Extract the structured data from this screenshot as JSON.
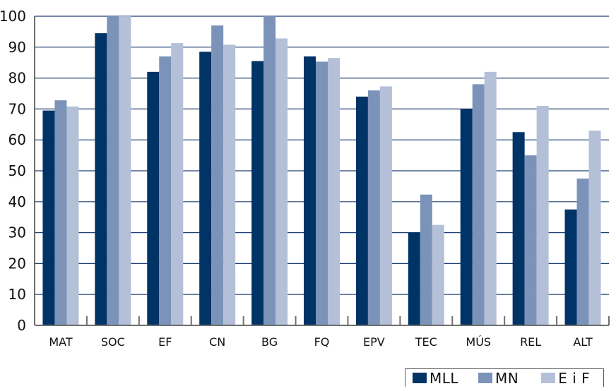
{
  "chart_data": {
    "type": "bar",
    "title": "",
    "xlabel": "",
    "ylabel": "",
    "ylim": [
      0,
      100
    ],
    "yticks": [
      0,
      10,
      20,
      30,
      40,
      50,
      60,
      70,
      80,
      90,
      100
    ],
    "grid": true,
    "legend_position": "bottom-right",
    "categories": [
      "MAT",
      "SOC",
      "EF",
      "CN",
      "BG",
      "FQ",
      "EPV",
      "TEC",
      "MÚS",
      "REL",
      "ALT"
    ],
    "series": [
      {
        "name": "MLL",
        "color": "#003366",
        "values": [
          69.5,
          94.5,
          82,
          88.5,
          85.5,
          87,
          74,
          30,
          70,
          62.5,
          37.5
        ]
      },
      {
        "name": "MN",
        "color": "#7b93b8",
        "values": [
          72.8,
          100,
          87,
          97,
          100,
          85.3,
          76,
          42.3,
          78,
          55,
          47.5
        ]
      },
      {
        "name": "E i F",
        "color": "#b4c0d8",
        "values": [
          70.8,
          100,
          91.3,
          90.8,
          92.8,
          86.5,
          77.3,
          32.5,
          82,
          71,
          63
        ]
      }
    ]
  }
}
